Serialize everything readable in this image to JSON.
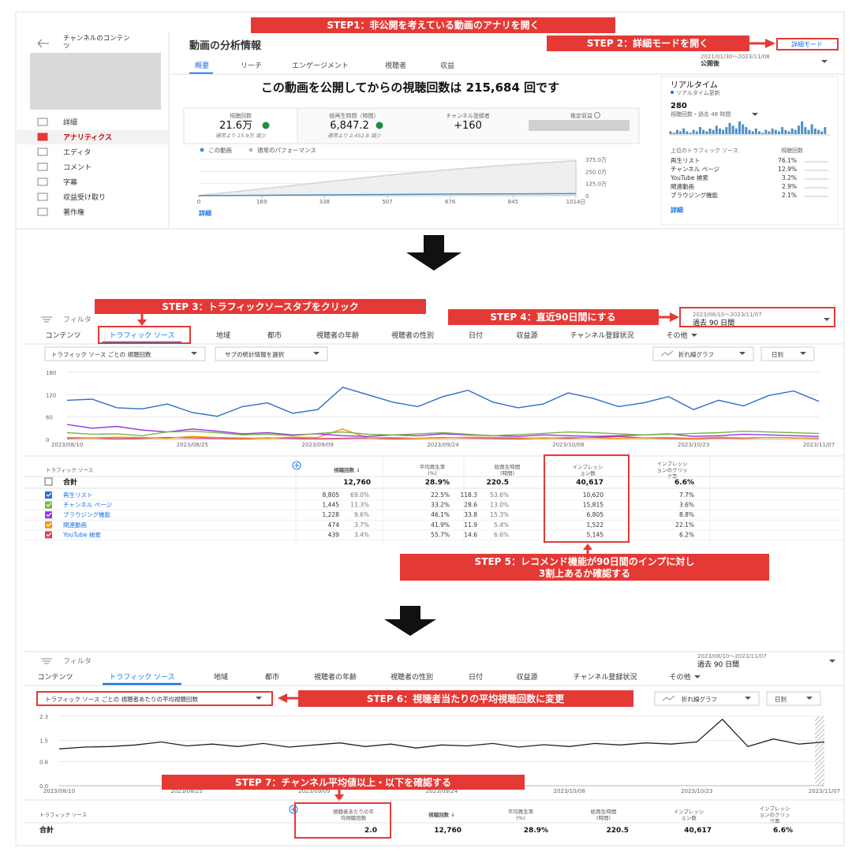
{
  "steps": {
    "step1": "STEP1：非公開を考えている動画のアナリを開く",
    "step2": "STEP 2：詳細モードを開く",
    "step3": "STEP 3：トラフィックソースタブをクリック",
    "step4": "STEP 4：直近90日間にする",
    "step5": [
      "STEP 5：レコメンド機能が90日間のインプに対し",
      "3割上あるか確認する"
    ],
    "step6": "STEP 6：視聴者当たりの平均視聴回数に変更",
    "step7": "STEP 7：チャンネル平均値以上・以下を確認する"
  },
  "overview": {
    "sidebar_title": [
      "チャンネルのコンテン",
      "ツ"
    ],
    "menu": [
      "詳細",
      "アナリティクス",
      "エディタ",
      "コメント",
      "字幕",
      "収益受け取り",
      "著作権"
    ],
    "page_title": "動画の分析情報",
    "tabs": [
      "概要",
      "リーチ",
      "エンゲージメント",
      "視聴者",
      "収益"
    ],
    "detail_mode": "詳細モード",
    "date_range": "2021/01/30～2023/11/08",
    "date_label": "公開後",
    "headline": "この動画を公開してからの視聴回数は 215,684 回です",
    "metrics": [
      {
        "label": "視聴回数",
        "value": "21.6万",
        "note": "通常より 15.9万 減少"
      },
      {
        "label": "総再生時間（時間）",
        "value": "6,847.2",
        "note": "通常より 2,452.8 減少"
      },
      {
        "label": "チャンネル登録者",
        "value": "+160"
      },
      {
        "label": "推定収益"
      }
    ],
    "more": "詳細",
    "chart": {
      "type": "line",
      "x": [
        0,
        169,
        338,
        507,
        676,
        845,
        1014
      ],
      "series": [
        {
          "name": "この動画",
          "color": "#4a90c8",
          "values": [
            0,
            40000,
            80000,
            120000,
            160000,
            190000,
            215684
          ]
        },
        {
          "name": "通常のパフォーマンス",
          "color": "#d6d6d6",
          "area": true,
          "values": [
            0,
            700000,
            1400000,
            2100000,
            2700000,
            3200000,
            3600000
          ]
        }
      ],
      "xlim": [
        0,
        1014
      ],
      "xticks": [
        0,
        169,
        338,
        507,
        676,
        845,
        {
          "value": 1014,
          "label": "1014日"
        }
      ],
      "ylim": [
        0,
        3750000
      ],
      "yticks": [
        0,
        {
          "value": 1250000,
          "label": "125.0万"
        },
        {
          "value": 2500000,
          "label": "250.0万"
        },
        {
          "value": 3750000,
          "label": "375.0万"
        }
      ]
    }
  },
  "realtime": {
    "title": "リアルタイム",
    "subtitle": "リアルタイム更新",
    "count": "280",
    "period": "視聴回数・過去 48 時間",
    "bars": {
      "type": "bar",
      "color": "#4a90c8",
      "values": [
        2,
        1,
        3,
        2,
        4,
        2,
        1,
        3,
        2,
        5,
        3,
        2,
        4,
        3,
        6,
        4,
        3,
        5,
        8,
        6,
        4,
        9,
        7,
        5,
        3,
        2,
        4,
        2,
        1,
        3,
        2,
        4,
        3,
        2,
        5,
        3,
        2,
        4,
        3,
        6,
        9,
        5,
        3,
        7,
        4,
        3,
        2,
        5
      ]
    },
    "sources_header": "上位のトラフィック ソース",
    "views_header": "視聴回数",
    "sources": [
      [
        "再生リスト",
        "76.1%"
      ],
      [
        "チャンネル ページ",
        "12.9%"
      ],
      [
        "YouTube 検索",
        "3.2%"
      ],
      [
        "関連動画",
        "2.9%"
      ],
      [
        "ブラウジング機能",
        "2.1%"
      ]
    ],
    "more": "詳細"
  },
  "traffic": {
    "filter": "フィルタ",
    "tabs": [
      "コンテンツ",
      "トラフィック ソース",
      "地域",
      "都市",
      "視聴者の年齢",
      "視聴者の性別",
      "日付",
      "収益源",
      "チャンネル登録状況",
      "その他"
    ],
    "date_range": "2023/08/10～2023/11/07",
    "date_label": "過去 90 日間",
    "metric_select": "トラフィック ソース ごとの 視聴回数",
    "sub_select": "サブの統計情報を選択",
    "chart_select": "折れ線グラフ",
    "interval_select": "日別",
    "chart": {
      "type": "line",
      "categories": [
        "2023/08/10",
        null,
        null,
        null,
        null,
        "2023/08/25",
        null,
        null,
        null,
        null,
        "2023/09/09",
        null,
        null,
        null,
        null,
        "2023/09/24",
        null,
        null,
        null,
        null,
        "2023/10/08",
        null,
        null,
        null,
        null,
        "2023/10/23",
        null,
        null,
        null,
        null,
        "2023/11/07"
      ],
      "series": [
        {
          "name": "再生リスト",
          "color": "#2a6fc9",
          "values": [
            105,
            108,
            85,
            82,
            95,
            72,
            62,
            88,
            98,
            70,
            80,
            140,
            120,
            100,
            88,
            115,
            132,
            100,
            85,
            95,
            125,
            110,
            88,
            98,
            115,
            80,
            105,
            90,
            118,
            130,
            102
          ]
        },
        {
          "name": "チャンネル ページ",
          "color": "#7cb342",
          "values": [
            18,
            14,
            15,
            10,
            20,
            22,
            18,
            12,
            14,
            10,
            16,
            20,
            14,
            12,
            15,
            18,
            14,
            10,
            13,
            16,
            20,
            18,
            15,
            12,
            14,
            16,
            18,
            22,
            20,
            18,
            16
          ]
        },
        {
          "name": "ブラウジング機能",
          "color": "#9334e6",
          "values": [
            40,
            30,
            35,
            25,
            20,
            28,
            22,
            15,
            18,
            12,
            15,
            10,
            8,
            12,
            10,
            15,
            12,
            10,
            8,
            12,
            10,
            8,
            10,
            12,
            15,
            8,
            10,
            14,
            12,
            10,
            8
          ]
        },
        {
          "name": "関連動画",
          "color": "#f29900",
          "values": [
            5,
            4,
            6,
            5,
            3,
            8,
            5,
            4,
            3,
            6,
            5,
            28,
            4,
            5,
            3,
            4,
            6,
            5,
            4,
            3,
            5,
            4,
            3,
            4,
            5,
            3,
            6,
            4,
            5,
            4,
            3
          ]
        },
        {
          "name": "YouTube 検索",
          "color": "#d93f6a",
          "values": [
            3,
            4,
            2,
            3,
            5,
            4,
            3,
            2,
            4,
            3,
            2,
            3,
            4,
            2,
            3,
            5,
            4,
            3,
            2,
            4,
            3,
            5,
            8,
            4,
            3,
            2,
            4,
            3,
            5,
            4,
            3
          ]
        }
      ],
      "ylim": [
        0,
        180
      ],
      "yticks": [
        0,
        60,
        120,
        180
      ]
    },
    "table": {
      "headers": [
        [
          "トラフィック ソース"
        ],
        [
          "視聴回数 ↓"
        ],
        [
          "平均再生率",
          "(%)"
        ],
        [
          "総再生時間",
          "(時間)"
        ],
        [
          "インプレッシ",
          "ョン数"
        ],
        [
          "インプレッシ",
          "ョンのクリッ",
          "ク率"
        ]
      ],
      "total": [
        "合計",
        "12,760",
        "28.9%",
        "220.5",
        "40,617",
        "6.6%"
      ],
      "rows": [
        [
          "8,805",
          "69.0%",
          "22.5%",
          "118.3",
          "53.6%",
          "10,620",
          "7.7%"
        ],
        [
          "1,445",
          "11.3%",
          "33.2%",
          "28.6",
          "13.0%",
          "15,815",
          "3.6%"
        ],
        [
          "1,228",
          "9.6%",
          "46.1%",
          "33.8",
          "15.3%",
          "6,805",
          "8.8%"
        ],
        [
          "474",
          "3.7%",
          "41.9%",
          "11.9",
          "5.4%",
          "1,522",
          "22.1%"
        ],
        [
          "439",
          "3.4%",
          "55.7%",
          "14.6",
          "6.6%",
          "5,145",
          "6.2%"
        ]
      ]
    }
  },
  "average": {
    "filter": "フィルタ",
    "tabs": [
      "コンテンツ",
      "トラフィック ソース",
      "地域",
      "都市",
      "視聴者の年齢",
      "視聴者の性別",
      "日付",
      "収益源",
      "チャンネル登録状況",
      "その他"
    ],
    "date_range": "2023/08/10～2023/11/07",
    "date_label": "過去 90 日間",
    "metric_select": "トラフィック ソース ごとの 視聴者あたりの平均視聴回数",
    "chart_select": "折れ線グラフ",
    "interval_select": "日別",
    "chart": {
      "type": "line",
      "categories": [
        "2023/08/10",
        null,
        null,
        null,
        null,
        "2023/08/25",
        null,
        null,
        null,
        null,
        "2023/09/09",
        null,
        null,
        null,
        null,
        "2023/09/24",
        null,
        null,
        null,
        null,
        "2023/10/08",
        null,
        null,
        null,
        null,
        "2023/10/23",
        null,
        null,
        null,
        null,
        "2023/11/07"
      ],
      "series": [
        {
          "name": "合計",
          "color": "#222222",
          "values": [
            1.22,
            1.28,
            1.3,
            1.35,
            1.45,
            1.32,
            1.38,
            1.3,
            1.4,
            1.28,
            1.35,
            1.42,
            1.3,
            1.38,
            1.25,
            1.35,
            1.32,
            1.4,
            1.28,
            1.36,
            1.3,
            1.4,
            1.35,
            1.42,
            1.38,
            1.45,
            2.2,
            1.3,
            1.55,
            1.38,
            1.45
          ]
        }
      ],
      "ylim": [
        0,
        2.3
      ],
      "yticks": [
        {
          "value": 0,
          "label": "0.0"
        },
        0.8,
        1.5,
        2.3
      ]
    },
    "table": {
      "headers": [
        [
          "トラフィック ソース"
        ],
        [
          "視聴者あたりの平",
          "均視聴回数"
        ],
        [
          "視聴回数 ↓"
        ],
        [
          "平均再生率",
          "(%)"
        ],
        [
          "総再生時間",
          "(時間)"
        ],
        [
          "インプレッシ",
          "ョン数"
        ],
        [
          "インプレッシ",
          "ョンのクリッ",
          "ク率"
        ]
      ],
      "total": [
        "合計",
        "2.0",
        "12,760",
        "28.9%",
        "220.5",
        "40,617",
        "6.6%"
      ]
    }
  }
}
